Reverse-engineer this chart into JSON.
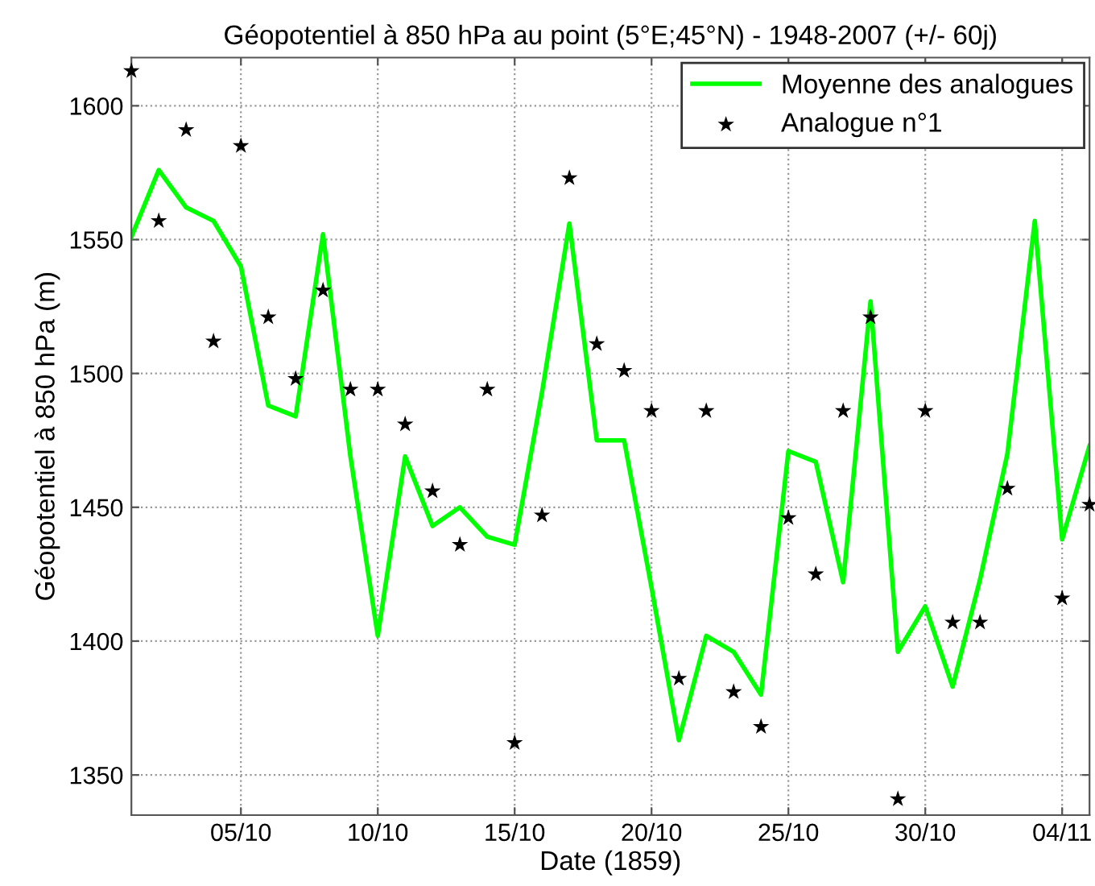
{
  "chart_data": {
    "type": "line",
    "title": "Géopotentiel à 850 hPa au point (5°E;45°N) - 1948-2007 (+/- 60j)",
    "xlabel": "Date (1859)",
    "ylabel": "Géopotentiel à 850 hPa (m)",
    "x": [
      "1859-10-01",
      "1859-10-02",
      "1859-10-03",
      "1859-10-04",
      "1859-10-05",
      "1859-10-06",
      "1859-10-07",
      "1859-10-08",
      "1859-10-09",
      "1859-10-10",
      "1859-10-11",
      "1859-10-12",
      "1859-10-13",
      "1859-10-14",
      "1859-10-15",
      "1859-10-16",
      "1859-10-17",
      "1859-10-18",
      "1859-10-19",
      "1859-10-20",
      "1859-10-21",
      "1859-10-22",
      "1859-10-23",
      "1859-10-24",
      "1859-10-25",
      "1859-10-26",
      "1859-10-27",
      "1859-10-28",
      "1859-10-29",
      "1859-10-30",
      "1859-10-31",
      "1859-11-01",
      "1859-11-02",
      "1859-11-03",
      "1859-11-04",
      "1859-11-05"
    ],
    "series": [
      {
        "name": "Moyenne des analogues",
        "color": "#00ff00",
        "marker": "none",
        "values": [
          1551,
          1576,
          1562,
          1557,
          1540,
          1488,
          1484,
          1552,
          1469,
          1402,
          1469,
          1443,
          1450,
          1439,
          1436,
          1493,
          1556,
          1475,
          1475,
          1420,
          1363,
          1402,
          1396,
          1380,
          1471,
          1467,
          1422,
          1527,
          1396,
          1413,
          1383,
          1423,
          1470,
          1557,
          1438,
          1473
        ]
      },
      {
        "name": "Analogue n°1",
        "type": "scatter",
        "color": "#000000",
        "marker": "star",
        "values": [
          1613,
          1557,
          1591,
          1512,
          1585,
          1521,
          1498,
          1531,
          1494,
          1494,
          1481,
          1456,
          1436,
          1494,
          1362,
          1447,
          1573,
          1511,
          1501,
          1486,
          1386,
          1486,
          1381,
          1368,
          1446,
          1425,
          1486,
          1521,
          1341,
          1486,
          1407,
          1407,
          1457,
          null,
          1416,
          1451
        ]
      }
    ],
    "xlim": [
      "1859-10-01",
      "1859-11-05"
    ],
    "xticks": [
      {
        "value": "1859-10-05",
        "label": "05/10"
      },
      {
        "value": "1859-10-10",
        "label": "10/10"
      },
      {
        "value": "1859-10-15",
        "label": "15/10"
      },
      {
        "value": "1859-10-20",
        "label": "20/10"
      },
      {
        "value": "1859-10-25",
        "label": "25/10"
      },
      {
        "value": "1859-10-30",
        "label": "30/10"
      },
      {
        "value": "1859-11-04",
        "label": "04/11"
      }
    ],
    "ylim": [
      1335,
      1618
    ],
    "yticks": [
      1350,
      1400,
      1450,
      1500,
      1550,
      1600
    ],
    "grid": true,
    "legend": "top right"
  }
}
